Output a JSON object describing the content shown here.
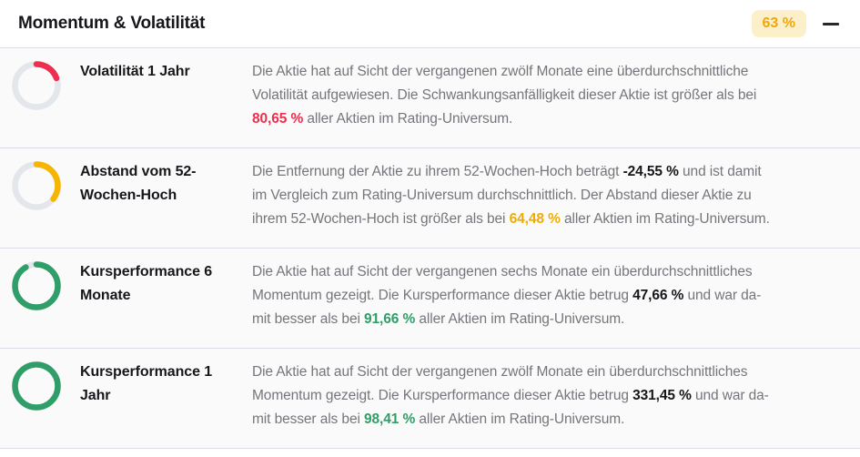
{
  "header": {
    "title": "Momentum & Volatilität",
    "score_badge": "63 %",
    "badge_bg": "#fcf0cb",
    "badge_text_color": "#f2a60a",
    "collapse_icon": "minus-icon"
  },
  "colors": {
    "red": "#ed2e4e",
    "yellow": "#f7b500",
    "green": "#2f9e68",
    "gauge_track": "#e3e6eb",
    "separator": "#dcdce4",
    "row_bg": "#fafafb",
    "text_dark": "#17171b",
    "text_gray": "#75757b"
  },
  "rows": [
    {
      "label": "Volatilität 1 Jahr",
      "gauge": {
        "percent": 19.35,
        "color": "#ed2e4e"
      },
      "highlight_value": "80,65 %",
      "description": [
        {
          "style": "normal",
          "text": "Die Aktie hat auf Sicht der vergangenen zwölf Monate eine überdurchschnittliche\nVolatilität aufgewiesen. Die Schwankungsanfälligkeit dieser Aktie ist größer als bei\n"
        },
        {
          "style": "red",
          "text": "80,65 %"
        },
        {
          "style": "normal",
          "text": " aller Aktien im Rating-Universum."
        }
      ]
    },
    {
      "label": "Abstand vom 52-Wochen-Hoch",
      "gauge": {
        "percent": 35.5,
        "color": "#f7b500"
      },
      "highlight_value": "64,48 %",
      "description": [
        {
          "style": "normal",
          "text": "Die Entfernung der Aktie zu ihrem 52-Wochen-Hoch beträgt "
        },
        {
          "style": "bold",
          "text": "-24,55 %"
        },
        {
          "style": "normal",
          "text": " und ist damit\nim Vergleich zum Rating-Universum durchschnittlich. Der Abstand dieser Aktie zu\nihrem 52-Wochen-Hoch ist größer als bei "
        },
        {
          "style": "yellow",
          "text": "64,48 %"
        },
        {
          "style": "normal",
          "text": " aller Aktien im Rating-Universum."
        }
      ]
    },
    {
      "label": "Kursperformance 6 Monate",
      "gauge": {
        "percent": 91.66,
        "color": "#2f9e68"
      },
      "highlight_value": "91,66 %",
      "description": [
        {
          "style": "normal",
          "text": "Die Aktie hat auf Sicht der vergangenen sechs Monate ein überdurchschnittliches\nMomentum gezeigt. Die Kursperformance dieser Aktie betrug "
        },
        {
          "style": "bold",
          "text": "47,66 %"
        },
        {
          "style": "normal",
          "text": " und war da-\nmit besser als bei "
        },
        {
          "style": "green",
          "text": "91,66 %"
        },
        {
          "style": "normal",
          "text": " aller Aktien im Rating-Universum."
        }
      ]
    },
    {
      "label": "Kursperformance 1 Jahr",
      "gauge": {
        "percent": 98.41,
        "color": "#2f9e68"
      },
      "highlight_value": "98,41 %",
      "description": [
        {
          "style": "normal",
          "text": "Die Aktie hat auf Sicht der vergangenen zwölf Monate ein überdurchschnittliches\nMomentum gezeigt. Die Kursperformance dieser Aktie betrug "
        },
        {
          "style": "bold",
          "text": "331,45 %"
        },
        {
          "style": "normal",
          "text": " und war da-\nmit besser als bei "
        },
        {
          "style": "green",
          "text": "98,41 %"
        },
        {
          "style": "normal",
          "text": " aller Aktien im Rating-Universum."
        }
      ]
    }
  ]
}
